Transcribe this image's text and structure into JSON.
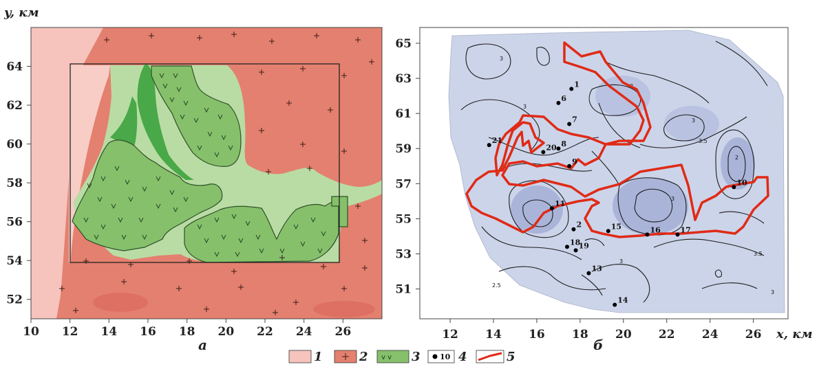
{
  "panels": {
    "left": {
      "y_axis_title": "y, км",
      "x_ticks": [
        "10",
        "12",
        "14",
        "16",
        "18",
        "20",
        "22",
        "24",
        "26"
      ],
      "y_ticks": [
        "52",
        "54",
        "56",
        "58",
        "60",
        "62",
        "64"
      ],
      "caption": "а"
    },
    "right": {
      "x_axis_title": "x, км",
      "x_ticks": [
        "12",
        "14",
        "16",
        "18",
        "20",
        "22",
        "24",
        "26"
      ],
      "y_ticks": [
        "51",
        "53",
        "55",
        "57",
        "59",
        "61",
        "63",
        "65"
      ],
      "caption": "б",
      "wells": [
        {
          "label": "1",
          "x": 17.6,
          "y": 62.4
        },
        {
          "label": "6",
          "x": 17.0,
          "y": 61.6
        },
        {
          "label": "7",
          "x": 17.5,
          "y": 60.4
        },
        {
          "label": "8",
          "x": 17.0,
          "y": 59.0
        },
        {
          "label": "9",
          "x": 17.5,
          "y": 58.0
        },
        {
          "label": "20",
          "x": 16.3,
          "y": 58.8
        },
        {
          "label": "21",
          "x": 13.8,
          "y": 59.2
        },
        {
          "label": "11",
          "x": 16.7,
          "y": 55.6
        },
        {
          "label": "2",
          "x": 17.7,
          "y": 54.4
        },
        {
          "label": "15",
          "x": 19.3,
          "y": 54.3
        },
        {
          "label": "16",
          "x": 21.1,
          "y": 54.1
        },
        {
          "label": "17",
          "x": 22.5,
          "y": 54.1
        },
        {
          "label": "18",
          "x": 17.4,
          "y": 53.4
        },
        {
          "label": "19",
          "x": 17.8,
          "y": 53.2
        },
        {
          "label": "13",
          "x": 18.4,
          "y": 51.9
        },
        {
          "label": "14",
          "x": 19.6,
          "y": 50.1
        },
        {
          "label": "10",
          "x": 25.1,
          "y": 56.8
        }
      ]
    }
  },
  "legend": {
    "items": [
      {
        "num": "1",
        "color": "#f6c3bd"
      },
      {
        "num": "2",
        "color": "#e4806f"
      },
      {
        "num": "3",
        "color": "#86c06b"
      },
      {
        "num": "4",
        "color": "#000000"
      },
      {
        "num": "5",
        "color": "#e02a16"
      }
    ],
    "sample_label_4": "10"
  },
  "colors": {
    "granite": "#e4806f",
    "light_pink": "#f6c3bd",
    "green": "#86c06b",
    "dark_green": "#49a847",
    "pale_green": "#b9dca4",
    "contour_fill": "#ccd4e9",
    "contour_fill_dark": "#aab4d9",
    "outline_red": "#e02a16"
  }
}
